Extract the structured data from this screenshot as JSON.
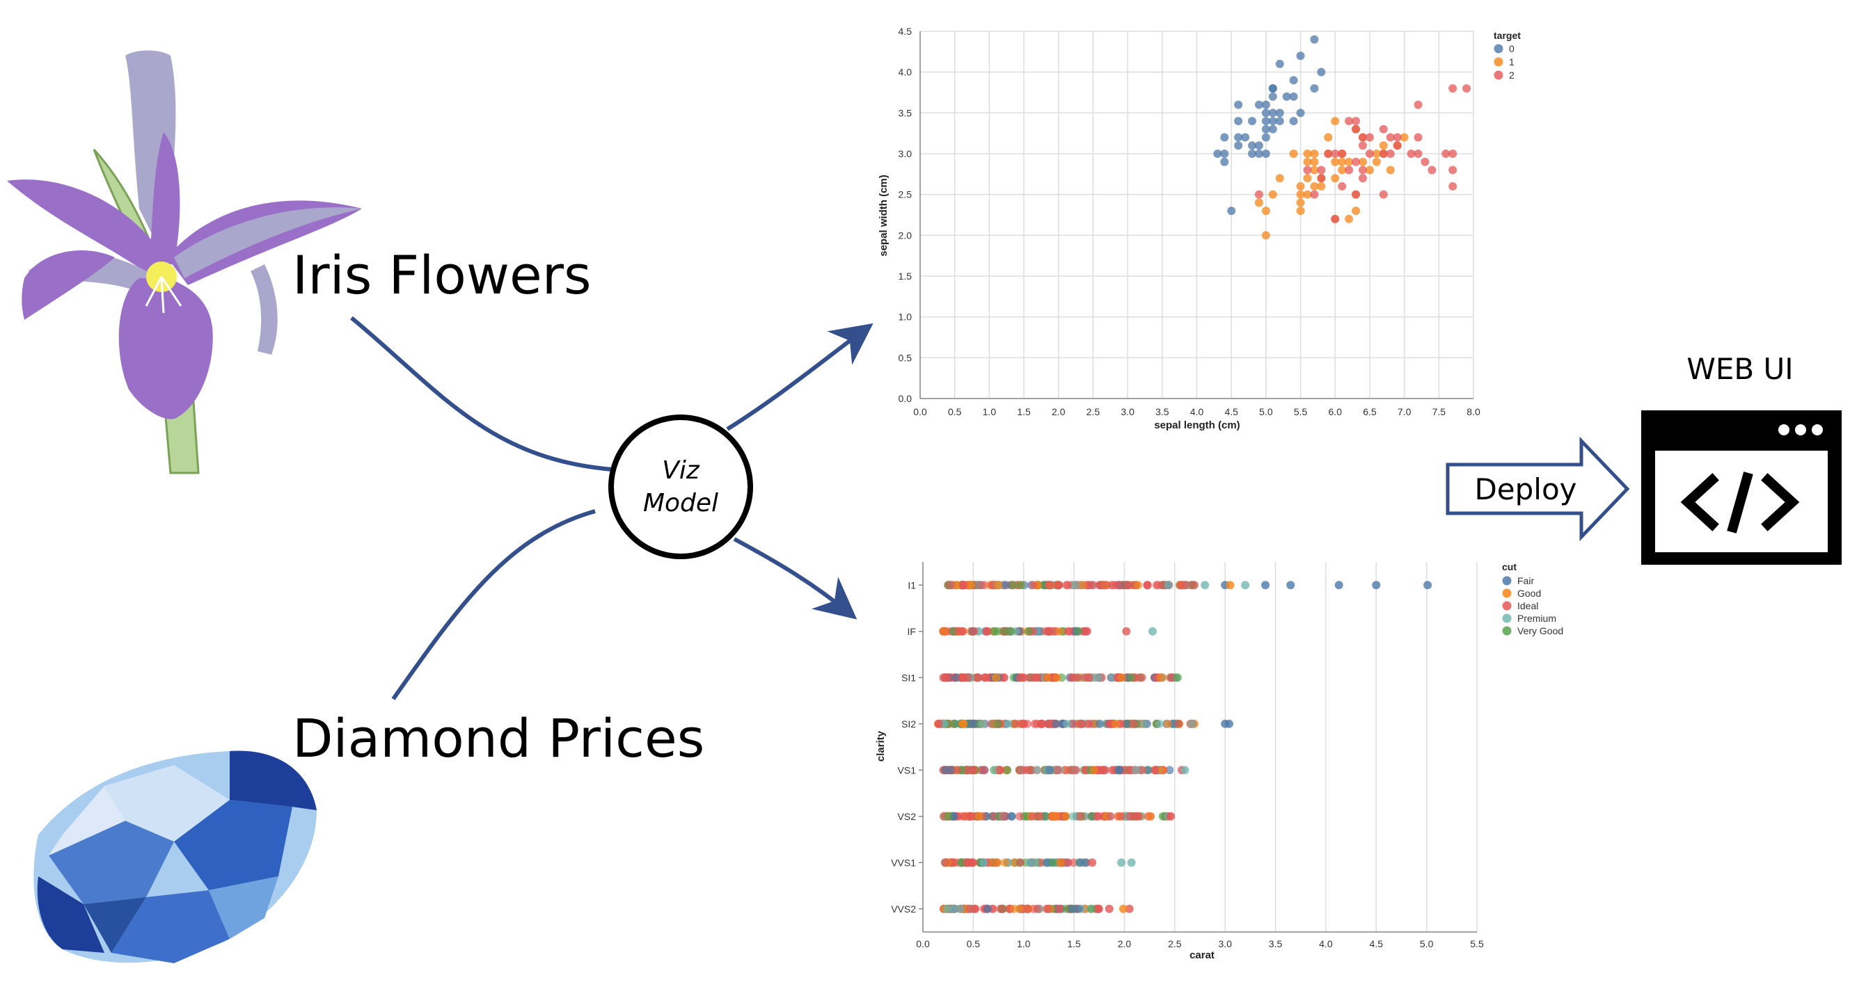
{
  "labels": {
    "iris": "Iris Flowers",
    "diamond": "Diamond Prices",
    "model_line1": "Viz",
    "model_line2": "Model",
    "deploy": "Deploy",
    "web_ui": "WEB UI"
  },
  "colors": {
    "arrow": "#34508c",
    "petal": "#9a6fc8",
    "petal_light": "#a9a7cc",
    "stem": "#b9d69a",
    "diamond_dark": "#1d3f99",
    "diamond_light": "#a9cdee",
    "series0": "#4c78a8",
    "series1": "#f58518",
    "series2": "#e45756",
    "premium": "#72b7b2",
    "very_good": "#54a24b"
  },
  "chart_data": [
    {
      "type": "scatter",
      "title": "",
      "xlabel": "sepal length (cm)",
      "ylabel": "sepal width (cm)",
      "xlim": [
        0,
        8
      ],
      "ylim": [
        0,
        4.5
      ],
      "xticks": [
        "0.0",
        "0.5",
        "1.0",
        "1.5",
        "2.0",
        "2.5",
        "3.0",
        "3.5",
        "4.0",
        "4.5",
        "5.0",
        "5.5",
        "6.0",
        "6.5",
        "7.0",
        "7.5",
        "8.0"
      ],
      "yticks": [
        "0.0",
        "0.5",
        "1.0",
        "1.5",
        "2.0",
        "2.5",
        "3.0",
        "3.5",
        "4.0",
        "4.5"
      ],
      "legend": {
        "title": "target",
        "placement": "top-right",
        "entries": [
          "0",
          "1",
          "2"
        ]
      },
      "series": [
        {
          "name": "0",
          "points": [
            [
              4.3,
              3.0
            ],
            [
              4.4,
              2.9
            ],
            [
              4.4,
              3.0
            ],
            [
              4.4,
              3.2
            ],
            [
              4.5,
              2.3
            ],
            [
              4.6,
              3.1
            ],
            [
              4.6,
              3.4
            ],
            [
              4.6,
              3.6
            ],
            [
              4.6,
              3.2
            ],
            [
              4.7,
              3.2
            ],
            [
              4.8,
              3.4
            ],
            [
              4.8,
              3.0
            ],
            [
              4.8,
              3.1
            ],
            [
              4.9,
              3.0
            ],
            [
              4.9,
              3.1
            ],
            [
              4.9,
              3.6
            ],
            [
              5.0,
              3.6
            ],
            [
              5.0,
              3.4
            ],
            [
              5.0,
              3.0
            ],
            [
              5.0,
              3.3
            ],
            [
              5.0,
              3.5
            ],
            [
              5.0,
              3.2
            ],
            [
              5.1,
              3.5
            ],
            [
              5.1,
              3.8
            ],
            [
              5.1,
              3.7
            ],
            [
              5.1,
              3.3
            ],
            [
              5.1,
              3.4
            ],
            [
              5.2,
              3.5
            ],
            [
              5.2,
              3.4
            ],
            [
              5.2,
              4.1
            ],
            [
              5.3,
              3.7
            ],
            [
              5.4,
              3.9
            ],
            [
              5.4,
              3.7
            ],
            [
              5.4,
              3.4
            ],
            [
              5.5,
              4.2
            ],
            [
              5.5,
              3.5
            ],
            [
              5.7,
              4.4
            ],
            [
              5.7,
              3.8
            ],
            [
              5.8,
              4.0
            ],
            [
              5.1,
              3.8
            ]
          ]
        },
        {
          "name": "1",
          "points": [
            [
              4.9,
              2.4
            ],
            [
              5.0,
              2.0
            ],
            [
              5.0,
              2.3
            ],
            [
              5.1,
              2.5
            ],
            [
              5.2,
              2.7
            ],
            [
              5.4,
              3.0
            ],
            [
              5.5,
              2.3
            ],
            [
              5.5,
              2.4
            ],
            [
              5.5,
              2.5
            ],
            [
              5.5,
              2.6
            ],
            [
              5.6,
              2.9
            ],
            [
              5.6,
              3.0
            ],
            [
              5.6,
              2.5
            ],
            [
              5.6,
              2.7
            ],
            [
              5.7,
              2.8
            ],
            [
              5.7,
              2.6
            ],
            [
              5.7,
              2.9
            ],
            [
              5.7,
              3.0
            ],
            [
              5.8,
              2.7
            ],
            [
              5.8,
              2.6
            ],
            [
              5.9,
              3.0
            ],
            [
              5.9,
              3.2
            ],
            [
              6.0,
              2.2
            ],
            [
              6.0,
              2.9
            ],
            [
              6.0,
              2.7
            ],
            [
              6.0,
              3.4
            ],
            [
              6.1,
              2.8
            ],
            [
              6.1,
              2.9
            ],
            [
              6.1,
              3.0
            ],
            [
              6.2,
              2.2
            ],
            [
              6.2,
              2.9
            ],
            [
              6.3,
              3.3
            ],
            [
              6.3,
              2.5
            ],
            [
              6.3,
              2.3
            ],
            [
              6.4,
              2.9
            ],
            [
              6.4,
              3.2
            ],
            [
              6.5,
              2.8
            ],
            [
              6.6,
              2.9
            ],
            [
              6.6,
              3.0
            ],
            [
              6.7,
              3.1
            ],
            [
              6.7,
              3.0
            ],
            [
              6.8,
              2.8
            ],
            [
              6.9,
              3.1
            ],
            [
              7.0,
              3.2
            ]
          ]
        },
        {
          "name": "2",
          "points": [
            [
              4.9,
              2.5
            ],
            [
              5.6,
              2.8
            ],
            [
              5.7,
              2.5
            ],
            [
              5.8,
              2.7
            ],
            [
              5.8,
              2.8
            ],
            [
              5.9,
              3.0
            ],
            [
              6.0,
              2.2
            ],
            [
              6.0,
              3.0
            ],
            [
              6.1,
              3.0
            ],
            [
              6.1,
              2.6
            ],
            [
              6.2,
              3.4
            ],
            [
              6.2,
              2.8
            ],
            [
              6.3,
              3.3
            ],
            [
              6.3,
              2.9
            ],
            [
              6.3,
              2.5
            ],
            [
              6.3,
              3.4
            ],
            [
              6.4,
              3.2
            ],
            [
              6.4,
              2.7
            ],
            [
              6.4,
              2.8
            ],
            [
              6.4,
              3.1
            ],
            [
              6.5,
              3.0
            ],
            [
              6.5,
              3.2
            ],
            [
              6.7,
              3.3
            ],
            [
              6.7,
              2.5
            ],
            [
              6.7,
              3.0
            ],
            [
              6.8,
              3.0
            ],
            [
              6.8,
              3.2
            ],
            [
              6.9,
              3.2
            ],
            [
              6.9,
              3.1
            ],
            [
              7.1,
              3.0
            ],
            [
              7.2,
              3.6
            ],
            [
              7.2,
              3.2
            ],
            [
              7.2,
              3.0
            ],
            [
              7.3,
              2.9
            ],
            [
              7.4,
              2.8
            ],
            [
              7.6,
              3.0
            ],
            [
              7.7,
              3.8
            ],
            [
              7.7,
              2.6
            ],
            [
              7.7,
              2.8
            ],
            [
              7.7,
              3.0
            ],
            [
              7.9,
              3.8
            ]
          ]
        }
      ]
    },
    {
      "type": "scatter",
      "title": "",
      "xlabel": "carat",
      "ylabel": "clarity",
      "xlim": [
        0,
        5.5
      ],
      "xticks": [
        "0.0",
        "0.5",
        "1.0",
        "1.5",
        "2.0",
        "2.5",
        "3.0",
        "3.5",
        "4.0",
        "4.5",
        "5.0",
        "5.5"
      ],
      "categories": [
        "I1",
        "IF",
        "SI1",
        "SI2",
        "VS1",
        "VS2",
        "VVS1",
        "VVS2"
      ],
      "legend": {
        "title": "cut",
        "placement": "top-right",
        "entries": [
          "Fair",
          "Good",
          "Ideal",
          "Premium",
          "Very Good"
        ]
      },
      "ranges": [
        {
          "clarity": "I1",
          "dense_min": 0.25,
          "dense_max": 2.7
        },
        {
          "clarity": "IF",
          "dense_min": 0.2,
          "dense_max": 1.65
        },
        {
          "clarity": "SI1",
          "dense_min": 0.2,
          "dense_max": 2.55
        },
        {
          "clarity": "SI2",
          "dense_min": 0.15,
          "dense_max": 2.7
        },
        {
          "clarity": "VS1",
          "dense_min": 0.2,
          "dense_max": 2.45
        },
        {
          "clarity": "VS2",
          "dense_min": 0.2,
          "dense_max": 2.5
        },
        {
          "clarity": "VVS1",
          "dense_min": 0.2,
          "dense_max": 1.65
        },
        {
          "clarity": "VVS2",
          "dense_min": 0.2,
          "dense_max": 1.75
        }
      ],
      "outliers": [
        {
          "clarity": "I1",
          "cut": "Fair",
          "carats": [
            3.0,
            3.4,
            3.65,
            4.13,
            4.5,
            5.01
          ]
        },
        {
          "clarity": "I1",
          "cut": "Premium",
          "carats": [
            2.8,
            3.2
          ]
        },
        {
          "clarity": "I1",
          "cut": "Good",
          "carats": [
            3.05
          ]
        },
        {
          "clarity": "IF",
          "cut": "Ideal",
          "carats": [
            2.02
          ]
        },
        {
          "clarity": "IF",
          "cut": "Premium",
          "carats": [
            2.28
          ]
        },
        {
          "clarity": "SI2",
          "cut": "Fair",
          "carats": [
            3.0,
            3.04
          ]
        },
        {
          "clarity": "VS1",
          "cut": "Ideal",
          "carats": [
            2.57
          ]
        },
        {
          "clarity": "VS1",
          "cut": "Premium",
          "carats": [
            2.6
          ]
        },
        {
          "clarity": "VVS1",
          "cut": "Ideal",
          "carats": [
            1.68
          ]
        },
        {
          "clarity": "VVS1",
          "cut": "Premium",
          "carats": [
            1.97,
            2.07
          ]
        },
        {
          "clarity": "VVS2",
          "cut": "Ideal",
          "carats": [
            1.85,
            2.05
          ]
        },
        {
          "clarity": "VVS2",
          "cut": "Good",
          "carats": [
            1.99
          ]
        }
      ]
    }
  ]
}
